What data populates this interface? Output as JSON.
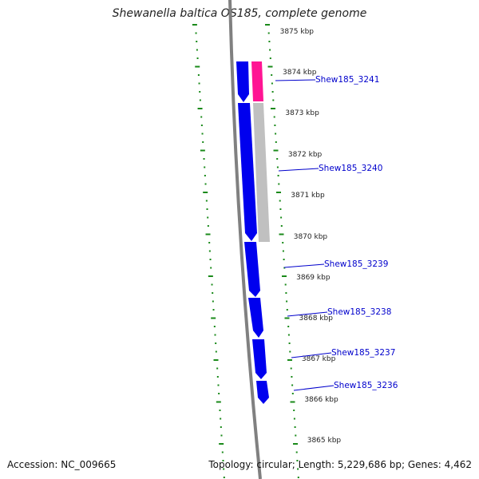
{
  "title": "Shewanella baltica OS185, complete genome",
  "footer": {
    "accession": "Accession: NC_009665",
    "summary": "Topology: circular; Length: 5,229,686 bp; Genes: 4,462"
  },
  "colors": {
    "background": "#ffffff",
    "axis": "#808080",
    "tick": "#1a8a1a",
    "gene_forward": "#0000ee",
    "gene_label": "#0000cc",
    "feature_magenta": "#ff1493",
    "feature_grey": "#c0c0c0"
  },
  "ruler": {
    "ticks": [
      "3875 kbp",
      "3874 kbp",
      "3873 kbp",
      "3872 kbp",
      "3871 kbp",
      "3870 kbp",
      "3869 kbp",
      "3868 kbp",
      "3867 kbp",
      "3866 kbp",
      "3865 kbp"
    ]
  },
  "genes": [
    {
      "label": "Shew185_3241",
      "color": "#0000ee",
      "strand": "reverse"
    },
    {
      "label": "Shew185_3240",
      "color": "#0000ee",
      "strand": "reverse"
    },
    {
      "label": "Shew185_3239",
      "color": "#0000ee",
      "strand": "reverse"
    },
    {
      "label": "Shew185_3238",
      "color": "#0000ee",
      "strand": "reverse"
    },
    {
      "label": "Shew185_3237",
      "color": "#0000ee",
      "strand": "reverse"
    },
    {
      "label": "Shew185_3236",
      "color": "#0000ee",
      "strand": "reverse"
    }
  ],
  "features": [
    {
      "color": "#ff1493"
    },
    {
      "color": "#c0c0c0"
    }
  ]
}
